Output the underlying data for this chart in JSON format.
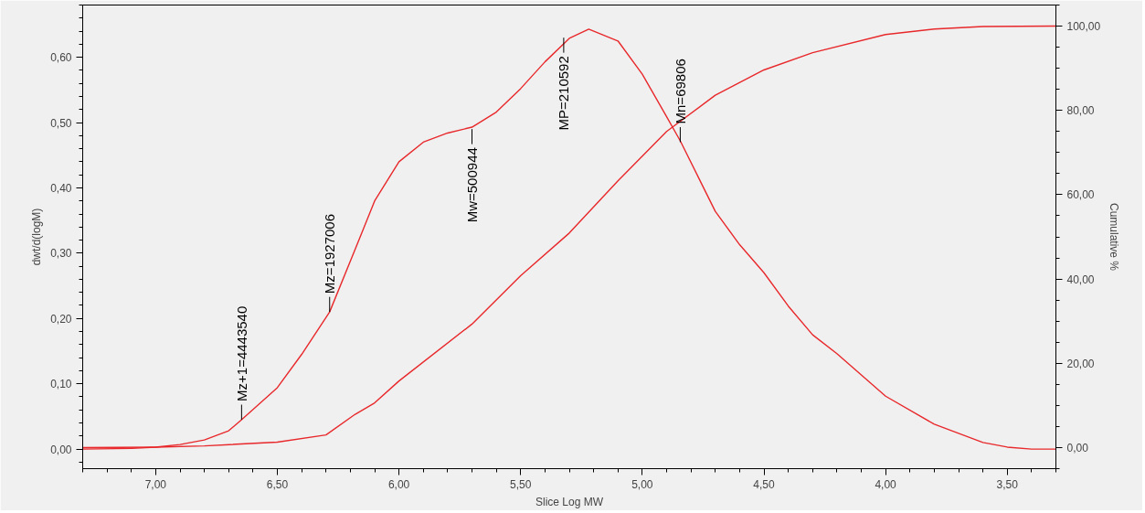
{
  "chart_data": {
    "type": "line",
    "xlabel": "Slice Log MW",
    "ylabel": "dwt/d(logM)",
    "y2label": "Cumulative %",
    "xlim": [
      7.3,
      3.3
    ],
    "ylim": [
      -0.03,
      0.68
    ],
    "y2lim": [
      -5,
      105
    ],
    "xticks": [
      {
        "value": 7.0,
        "label": "7,00"
      },
      {
        "value": 6.5,
        "label": "6,50"
      },
      {
        "value": 6.0,
        "label": "6,00"
      },
      {
        "value": 5.5,
        "label": "5,50"
      },
      {
        "value": 5.0,
        "label": "5,00"
      },
      {
        "value": 4.5,
        "label": "4,50"
      },
      {
        "value": 4.0,
        "label": "4,00"
      },
      {
        "value": 3.5,
        "label": "3,50"
      }
    ],
    "yticks": [
      {
        "value": 0,
        "label": "0,00"
      },
      {
        "value": 0.1,
        "label": "0,10"
      },
      {
        "value": 0.2,
        "label": "0,20"
      },
      {
        "value": 0.3,
        "label": "0,30"
      },
      {
        "value": 0.4,
        "label": "0,40"
      },
      {
        "value": 0.5,
        "label": "0,50"
      },
      {
        "value": 0.6,
        "label": "0,60"
      }
    ],
    "y2ticks": [
      {
        "value": 0,
        "label": "0,00"
      },
      {
        "value": 20,
        "label": "20,00"
      },
      {
        "value": 40,
        "label": "40,00"
      },
      {
        "value": 60,
        "label": "60,00"
      },
      {
        "value": 80,
        "label": "80,00"
      },
      {
        "value": 100,
        "label": "100,00"
      }
    ],
    "grid": false,
    "marker": "none",
    "line_style": "solid",
    "series": [
      {
        "color": "#e8282b",
        "x": [
          7.3,
          7.1,
          7.0,
          6.9,
          6.8,
          6.7,
          6.647,
          6.5,
          6.4,
          6.285,
          6.18,
          6.1,
          6.0,
          5.9,
          5.8,
          5.7,
          5.6,
          5.5,
          5.4,
          5.3,
          5.22,
          5.1,
          5.0,
          4.9,
          4.844,
          4.7,
          4.6,
          4.5,
          4.4,
          4.3,
          4.2,
          4.0,
          3.8,
          3.6,
          3.5,
          3.4,
          3.3
        ],
        "values": [
          0,
          0.001,
          0.003,
          0.007,
          0.014,
          0.028,
          0.045,
          0.094,
          0.145,
          0.21,
          0.306,
          0.38,
          0.44,
          0.47,
          0.484,
          0.493,
          0.516,
          0.552,
          0.593,
          0.629,
          0.643,
          0.625,
          0.574,
          0.509,
          0.472,
          0.364,
          0.313,
          0.27,
          0.219,
          0.175,
          0.146,
          0.081,
          0.038,
          0.01,
          0.003,
          0,
          0
        ]
      },
      {
        "color": "#e8282b",
        "axis": "y2",
        "x": [
          7.3,
          7.0,
          6.8,
          6.5,
          6.3,
          6.18,
          6.1,
          6.0,
          5.7,
          5.5,
          5.3,
          5.1,
          4.9,
          4.7,
          4.5,
          4.3,
          4.0,
          3.8,
          3.6,
          3.3
        ],
        "values": [
          0,
          0.1,
          0.4,
          1.3,
          3,
          7.9,
          10.6,
          15.8,
          29.3,
          40.8,
          50.9,
          63.3,
          75,
          83.6,
          89.6,
          93.7,
          98,
          99.3,
          99.9,
          100
        ]
      }
    ],
    "annotations": [
      {
        "text": "Mz+1=4443540",
        "x": 6.647,
        "y": 0.045
      },
      {
        "text": "Mz=1927006",
        "x": 6.285,
        "y": 0.21
      },
      {
        "text": "Mw=500944",
        "x": 5.7,
        "y": 0.49
      },
      {
        "text": "MP=210592",
        "x": 5.323,
        "y": 0.63
      },
      {
        "text": "Mn=69806",
        "x": 4.844,
        "y": 0.47
      }
    ]
  }
}
